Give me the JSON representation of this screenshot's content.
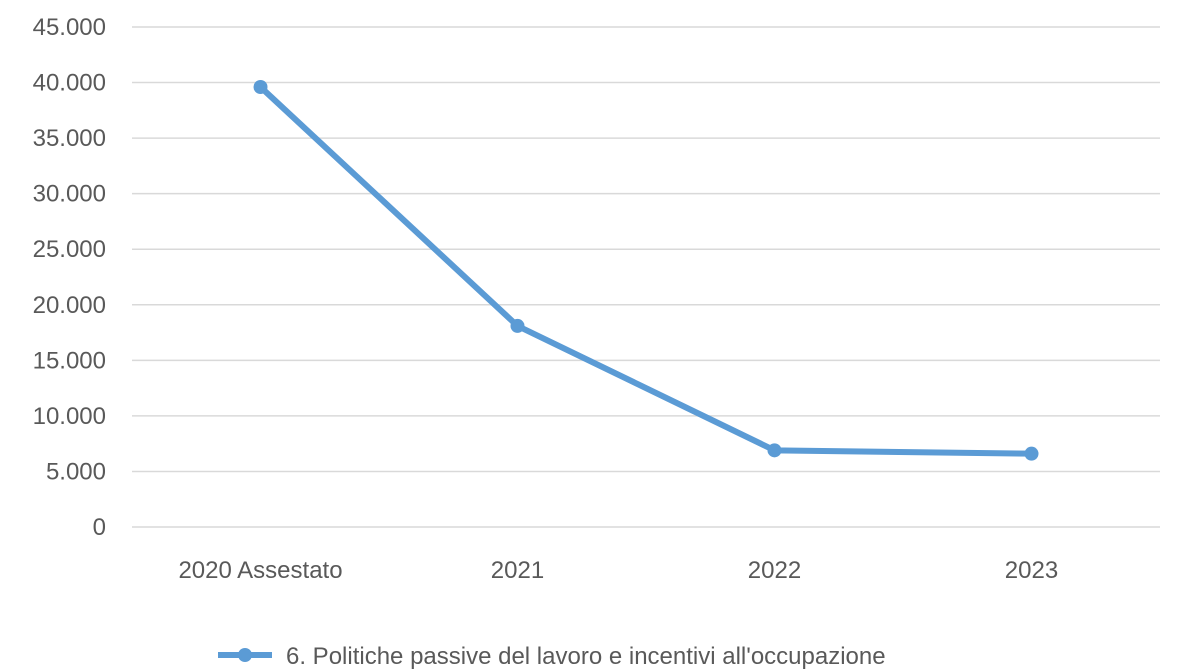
{
  "chart_data": {
    "type": "line",
    "categories": [
      "2020 Assestato",
      "2021",
      "2022",
      "2023"
    ],
    "series": [
      {
        "name": "6. Politiche passive del lavoro e incentivi all'occupazione",
        "values": [
          39600,
          18100,
          6900,
          6600
        ],
        "color": "#5b9bd5",
        "marker": "circle"
      }
    ],
    "ylim": [
      0,
      45000
    ],
    "yticks": [
      "0",
      "5.000",
      "10.000",
      "15.000",
      "20.000",
      "25.000",
      "30.000",
      "35.000",
      "40.000",
      "45.000"
    ],
    "ytick_values": [
      0,
      5000,
      10000,
      15000,
      20000,
      25000,
      30000,
      35000,
      40000,
      45000
    ],
    "grid": true,
    "legend_position": "bottom",
    "gridline_color": "#d9d9d9",
    "text_color": "#595959"
  }
}
